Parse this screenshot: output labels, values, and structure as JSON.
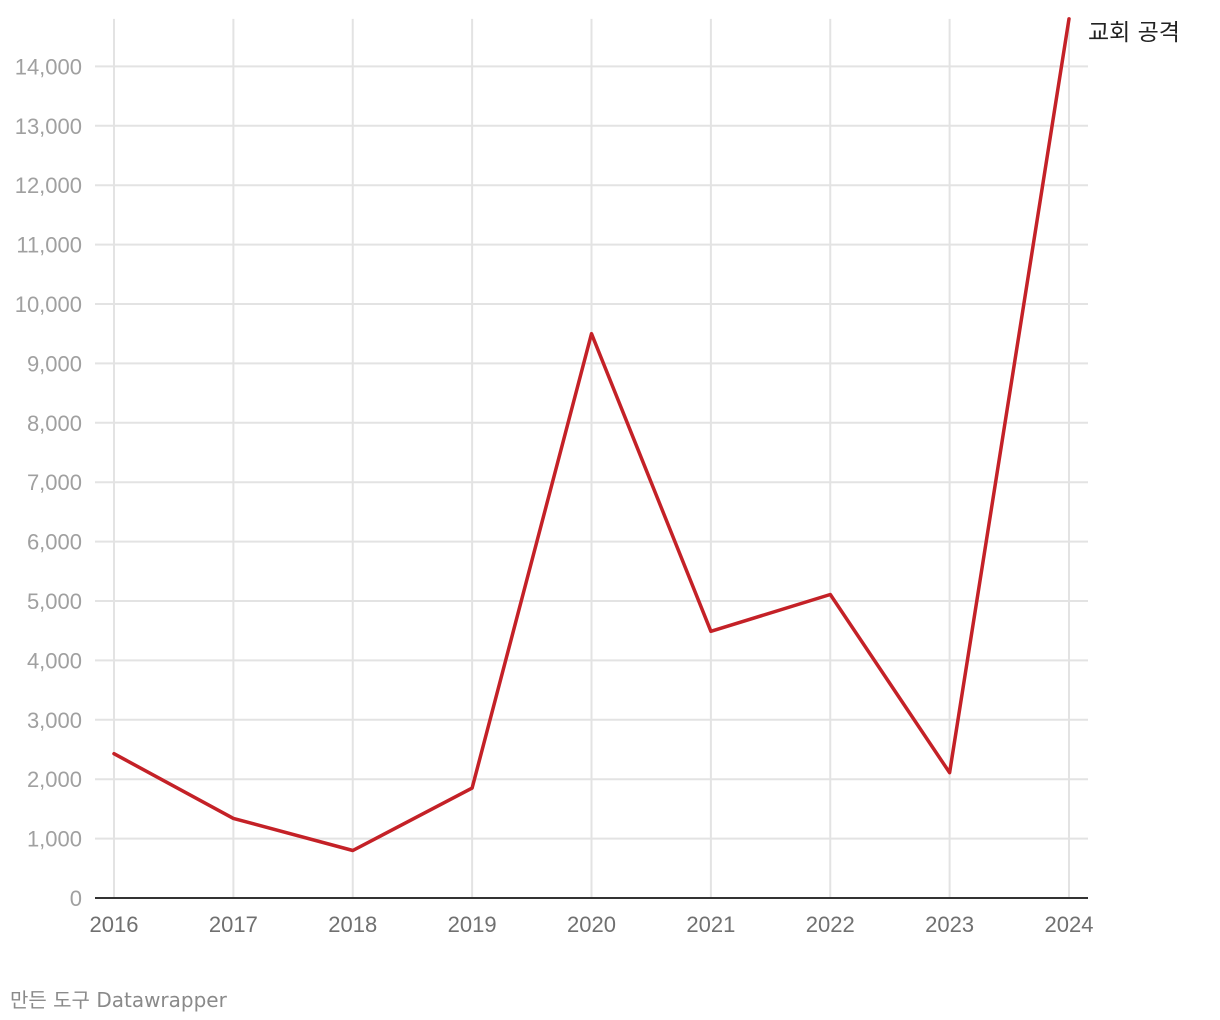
{
  "chart_data": {
    "type": "line",
    "x": [
      "2016",
      "2017",
      "2018",
      "2019",
      "2020",
      "2021",
      "2022",
      "2023",
      "2024"
    ],
    "series": [
      {
        "name": "교회 공격",
        "color": "#c42127",
        "values": [
          2430,
          1340,
          800,
          1850,
          9500,
          4490,
          5110,
          2110,
          14800
        ]
      }
    ],
    "y_ticks": [
      "0",
      "1,000",
      "2,000",
      "3,000",
      "4,000",
      "5,000",
      "6,000",
      "7,000",
      "8,000",
      "9,000",
      "10,000",
      "11,000",
      "12,000",
      "13,000",
      "14,000"
    ],
    "ylim": [
      0,
      14800
    ],
    "grid": true,
    "legend": "direct-label-right"
  },
  "footer": {
    "credit": "만든 도구 Datawrapper"
  }
}
